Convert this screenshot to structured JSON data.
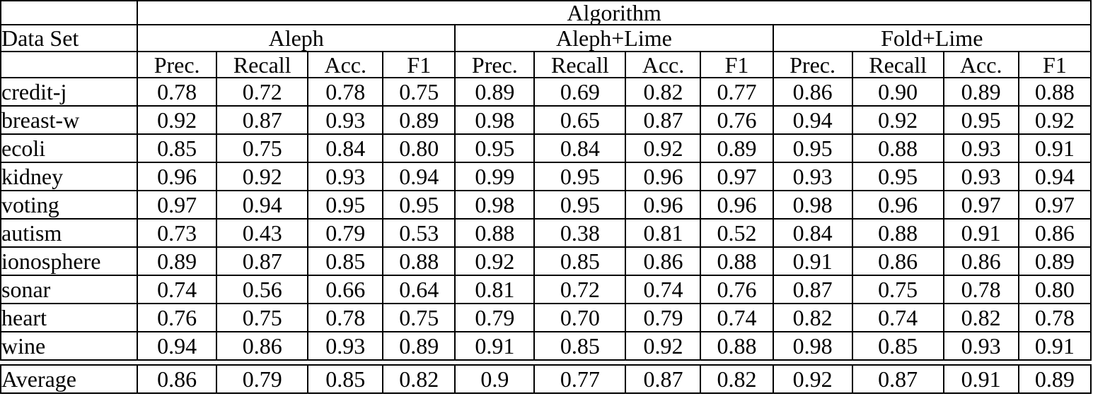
{
  "table": {
    "top_header": "Algorithm",
    "row_header": "Data Set",
    "groups": [
      {
        "label": "Aleph",
        "bold": false
      },
      {
        "label": "Aleph+Lime",
        "bold": false
      },
      {
        "label": "Fold+Lime",
        "bold": true
      }
    ],
    "metrics": [
      "Prec.",
      "Recall",
      "Acc.",
      "F1"
    ],
    "rows": [
      {
        "name": "credit-j",
        "values": [
          "0.78",
          "0.72",
          "0.78",
          "0.75",
          "0.89",
          "0.69",
          "0.82",
          "0.77",
          "0.86",
          "0.90",
          "0.89",
          "0.88"
        ],
        "bold": [
          false,
          false,
          false,
          false,
          true,
          false,
          false,
          false,
          false,
          true,
          true,
          true
        ]
      },
      {
        "name": "breast-w",
        "values": [
          "0.92",
          "0.87",
          "0.93",
          "0.89",
          "0.98",
          "0.65",
          "0.87",
          "0.76",
          "0.94",
          "0.92",
          "0.95",
          "0.92"
        ],
        "bold": [
          false,
          false,
          false,
          false,
          true,
          false,
          false,
          false,
          false,
          true,
          true,
          true
        ]
      },
      {
        "name": "ecoli",
        "values": [
          "0.85",
          "0.75",
          "0.84",
          "0.80",
          "0.95",
          "0.84",
          "0.92",
          "0.89",
          "0.95",
          "0.88",
          "0.93",
          "0.91"
        ],
        "bold": [
          false,
          false,
          false,
          false,
          false,
          false,
          false,
          false,
          true,
          true,
          true,
          true
        ]
      },
      {
        "name": "kidney",
        "values": [
          "0.96",
          "0.92",
          "0.93",
          "0.94",
          "0.99",
          "0.95",
          "0.96",
          "0.97",
          "0.93",
          "0.95",
          "0.93",
          "0.94"
        ],
        "bold": [
          false,
          false,
          false,
          false,
          true,
          false,
          true,
          true,
          false,
          true,
          false,
          false
        ]
      },
      {
        "name": "voting",
        "values": [
          "0.97",
          "0.94",
          "0.95",
          "0.95",
          "0.98",
          "0.95",
          "0.96",
          "0.96",
          "0.98",
          "0.96",
          "0.97",
          "0.97"
        ],
        "bold": [
          false,
          false,
          false,
          false,
          false,
          false,
          false,
          false,
          true,
          true,
          true,
          true
        ]
      },
      {
        "name": "autism",
        "values": [
          "0.73",
          "0.43",
          "0.79",
          "0.53",
          "0.88",
          "0.38",
          "0.81",
          "0.52",
          "0.84",
          "0.88",
          "0.91",
          "0.86"
        ],
        "bold": [
          false,
          false,
          false,
          false,
          true,
          false,
          false,
          false,
          false,
          true,
          true,
          true
        ]
      },
      {
        "name": "ionosphere",
        "values": [
          "0.89",
          "0.87",
          "0.85",
          "0.88",
          "0.92",
          "0.85",
          "0.86",
          "0.88",
          "0.91",
          "0.86",
          "0.86",
          "0.89"
        ],
        "bold": [
          false,
          false,
          false,
          false,
          false,
          false,
          false,
          false,
          true,
          true,
          true,
          true
        ]
      },
      {
        "name": "sonar",
        "values": [
          "0.74",
          "0.56",
          "0.66",
          "0.64",
          "0.81",
          "0.72",
          "0.74",
          "0.76",
          "0.87",
          "0.75",
          "0.78",
          "0.80"
        ],
        "bold": [
          false,
          false,
          false,
          false,
          false,
          false,
          false,
          false,
          true,
          true,
          true,
          true
        ]
      },
      {
        "name": "heart",
        "values": [
          "0.76",
          "0.75",
          "0.78",
          "0.75",
          "0.79",
          "0.70",
          "0.79",
          "0.74",
          "0.82",
          "0.74",
          "0.82",
          "0.78"
        ],
        "bold": [
          false,
          false,
          false,
          false,
          false,
          false,
          false,
          false,
          true,
          false,
          true,
          true
        ]
      },
      {
        "name": "wine",
        "values": [
          "0.94",
          "0.86",
          "0.93",
          "0.89",
          "0.91",
          "0.85",
          "0.92",
          "0.88",
          "0.98",
          "0.85",
          "0.93",
          "0.91"
        ],
        "bold": [
          false,
          true,
          false,
          false,
          false,
          false,
          false,
          false,
          true,
          false,
          true,
          true
        ]
      }
    ],
    "average": {
      "name": "Average",
      "values": [
        "0.86",
        "0.79",
        "0.85",
        "0.82",
        "0.9",
        "0.77",
        "0.87",
        "0.82",
        "0.92",
        "0.87",
        "0.91",
        "0.89"
      ],
      "bold": [
        false,
        false,
        false,
        false,
        false,
        false,
        false,
        false,
        true,
        true,
        true,
        true
      ]
    }
  }
}
